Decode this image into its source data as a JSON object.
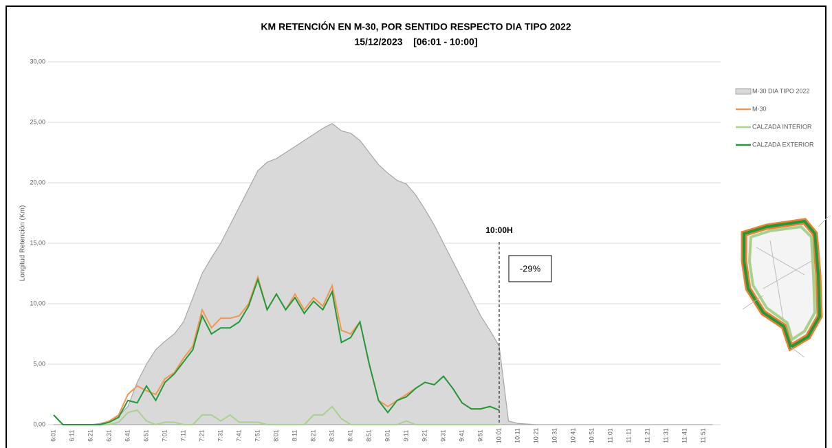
{
  "chart_data": {
    "type": "area-line",
    "title": "KM RETENCIÓN EN M-30, POR SENTIDO RESPECTO DIA TIPO 2022",
    "subtitle": "15/12/2023    [06:01 - 10:00]",
    "y_label": "Longitud Retención (Km)",
    "annotations": [
      "10:00H",
      "-29%"
    ],
    "categories": [
      "6:01",
      null,
      "6:11",
      null,
      "6:21",
      null,
      "6:31",
      null,
      "6:41",
      null,
      "6:51",
      null,
      "7:01",
      null,
      "7:11",
      null,
      "7:21",
      null,
      "7:31",
      null,
      "7:41",
      null,
      "7:51",
      null,
      "8:01",
      null,
      "8:11",
      null,
      "8:21",
      null,
      "8:31",
      null,
      "8:41",
      null,
      "8:51",
      null,
      "9:01",
      null,
      "9:11",
      null,
      "9:21",
      null,
      "9:31",
      null,
      "9:41",
      null,
      "9:51",
      null,
      "10:01",
      null,
      "10:11",
      null,
      "10:21",
      null,
      "10:31",
      null,
      "10:41",
      null,
      "10:51",
      null,
      "11:01",
      null,
      "11:11",
      null,
      "11:21",
      null,
      "11:31",
      null,
      "11:41",
      null,
      "11:51",
      null
    ],
    "ylim": [
      0,
      30
    ],
    "yticks": [
      {
        "value": 0,
        "label": "0,00"
      },
      {
        "value": 5,
        "label": "5,00"
      },
      {
        "value": 10,
        "label": "10,00"
      },
      {
        "value": 15,
        "label": "15,00"
      },
      {
        "value": 20,
        "label": "20,00"
      },
      {
        "value": 25,
        "label": "25,00"
      },
      {
        "value": 30,
        "label": "30,00"
      }
    ],
    "grid": true,
    "legend": "right",
    "series": [
      {
        "name": "M-30 DIA TIPO 2022",
        "kind": "area",
        "color": "#d9d9d9",
        "values": [
          0,
          0,
          0,
          0,
          0,
          0.1,
          0.3,
          0.7,
          1.5,
          3.5,
          5.0,
          6.2,
          6.9,
          7.5,
          8.5,
          10.5,
          12.5,
          13.8,
          15.0,
          16.5,
          18.0,
          19.5,
          21.0,
          21.7,
          22.0,
          22.5,
          23.0,
          23.5,
          24.0,
          24.5,
          24.9,
          24.3,
          24.1,
          23.5,
          22.5,
          21.5,
          20.8,
          20.2,
          19.9,
          19.0,
          17.8,
          16.5,
          15.0,
          13.5,
          12.0,
          10.5,
          9.0,
          7.8,
          6.5,
          0.3,
          0.1,
          0.05,
          0,
          0,
          0,
          0,
          0,
          0,
          0,
          0,
          0,
          0,
          0,
          0,
          0,
          0,
          0,
          0,
          0,
          0,
          0,
          0
        ]
      },
      {
        "name": "M-30",
        "kind": "line",
        "color": "#f4964e",
        "values": [
          0.8,
          0,
          0,
          0,
          0,
          0,
          0.3,
          0.8,
          2.5,
          3.2,
          2.8,
          2.5,
          3.8,
          4.3,
          5.5,
          6.5,
          9.5,
          8.0,
          8.8,
          8.8,
          9.0,
          10.0,
          12.2,
          9.5,
          10.8,
          9.5,
          10.8,
          9.5,
          10.5,
          9.8,
          11.5,
          7.8,
          7.5,
          8.5,
          5.0,
          2.0,
          1.5,
          2.0,
          2.5,
          3.0,
          3.5,
          3.3,
          4.0,
          3.0,
          1.8,
          1.3,
          1.3,
          1.5,
          1.2,
          null,
          null,
          null,
          null,
          null,
          null,
          null,
          null,
          null,
          null,
          null,
          null,
          null,
          null,
          null,
          null,
          null,
          null,
          null,
          null,
          null,
          null,
          null
        ]
      },
      {
        "name": "CALZADA INTERIOR",
        "kind": "line",
        "color": "#a9d18e",
        "values": [
          0.8,
          0,
          0,
          0,
          0,
          0,
          0,
          0.2,
          1.0,
          1.2,
          0.3,
          0,
          0.2,
          0.2,
          0,
          0,
          0.8,
          0.8,
          0.3,
          0.8,
          0.2,
          0.2,
          0.2,
          0,
          0,
          0,
          0,
          0,
          0.8,
          0.8,
          1.5,
          0.5,
          0,
          0,
          0,
          0,
          0,
          0,
          0.3,
          0,
          0,
          0,
          0,
          0,
          0,
          0,
          0,
          0,
          0,
          null,
          null,
          null,
          null,
          null,
          null,
          null,
          null,
          null,
          null,
          null,
          null,
          null,
          null,
          null,
          null,
          null,
          null,
          null,
          null,
          null,
          null,
          null
        ]
      },
      {
        "name": "CALZADA EXTERIOR",
        "kind": "line",
        "color": "#1e9a3c",
        "values": [
          0.8,
          0,
          0,
          0,
          0,
          0,
          0.2,
          0.6,
          2.0,
          1.8,
          3.2,
          2.0,
          3.5,
          4.2,
          5.2,
          6.2,
          9.0,
          7.5,
          8.0,
          8.0,
          8.5,
          9.8,
          12.0,
          9.5,
          10.8,
          9.5,
          10.5,
          9.2,
          10.2,
          9.5,
          11.0,
          6.8,
          7.2,
          8.5,
          5.0,
          2.0,
          1.0,
          2.0,
          2.3,
          3.0,
          3.5,
          3.3,
          4.0,
          3.0,
          1.8,
          1.3,
          1.3,
          1.5,
          1.2,
          null,
          null,
          null,
          null,
          null,
          null,
          null,
          null,
          null,
          null,
          null,
          null,
          null,
          null,
          null,
          null,
          null,
          null,
          null,
          null,
          null,
          null,
          null
        ]
      }
    ]
  }
}
